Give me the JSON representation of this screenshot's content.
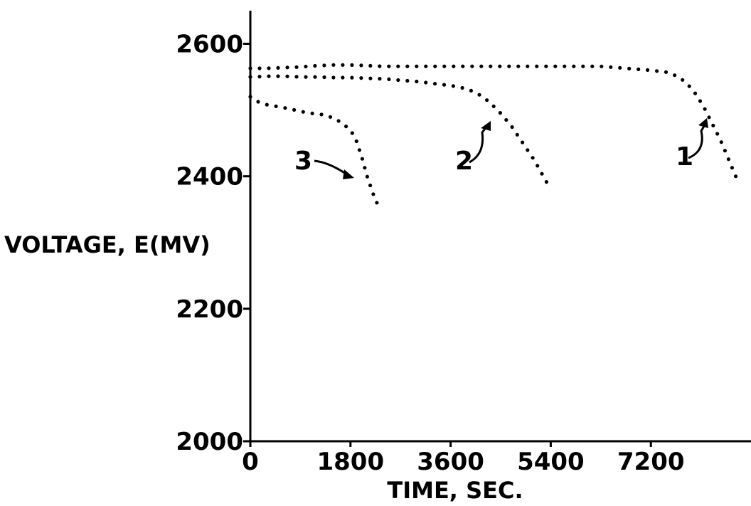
{
  "chart_data": {
    "type": "scatter",
    "xlabel": "TIME, SEC.",
    "ylabel": "VOLTAGE, E(MV)",
    "xlim": [
      0,
      9000
    ],
    "ylim": [
      2000,
      2650
    ],
    "x_ticks": [
      0,
      1800,
      3600,
      5400,
      7200
    ],
    "x_tick_labels": [
      "0",
      "1800",
      "3600",
      "5400",
      "7200"
    ],
    "y_ticks": [
      2000,
      2200,
      2400,
      2600
    ],
    "y_tick_labels": [
      "2000",
      "2200",
      "2400",
      "2600"
    ],
    "grid": false,
    "legend": "none",
    "series": [
      {
        "name": "1",
        "x": [
          0,
          300,
          600,
          900,
          1200,
          1500,
          1800,
          2100,
          2400,
          2700,
          3000,
          3300,
          3600,
          3900,
          4200,
          4500,
          4800,
          5100,
          5400,
          5700,
          6000,
          6300,
          6600,
          6900,
          7200,
          7500,
          7700,
          7850,
          8000,
          8150,
          8300,
          8450,
          8600,
          8750
        ],
        "y": [
          2563,
          2563,
          2564,
          2565,
          2567,
          2568,
          2568,
          2567,
          2566,
          2566,
          2566,
          2566,
          2566,
          2566,
          2566,
          2566,
          2566,
          2566,
          2566,
          2566,
          2566,
          2566,
          2564,
          2562,
          2560,
          2557,
          2550,
          2540,
          2525,
          2505,
          2480,
          2455,
          2425,
          2395
        ]
      },
      {
        "name": "2",
        "x": [
          0,
          300,
          600,
          900,
          1200,
          1500,
          1800,
          2100,
          2400,
          2700,
          3000,
          3300,
          3600,
          3900,
          4100,
          4300,
          4500,
          4700,
          4900,
          5100,
          5300,
          5400
        ],
        "y": [
          2550,
          2551,
          2551,
          2550,
          2550,
          2549,
          2549,
          2548,
          2547,
          2545,
          2543,
          2540,
          2537,
          2532,
          2524,
          2512,
          2495,
          2475,
          2450,
          2425,
          2395,
          2380
        ]
      },
      {
        "name": "3",
        "x": [
          0,
          150,
          300,
          500,
          700,
          900,
          1100,
          1300,
          1500,
          1650,
          1800,
          1900,
          2000,
          2100,
          2200,
          2300
        ],
        "y": [
          2520,
          2512,
          2508,
          2505,
          2502,
          2498,
          2495,
          2493,
          2488,
          2480,
          2470,
          2455,
          2430,
          2400,
          2375,
          2355
        ]
      }
    ],
    "annotations": [
      {
        "text": "1",
        "points_to_series": "1"
      },
      {
        "text": "2",
        "points_to_series": "2"
      },
      {
        "text": "3",
        "points_to_series": "3"
      }
    ]
  }
}
